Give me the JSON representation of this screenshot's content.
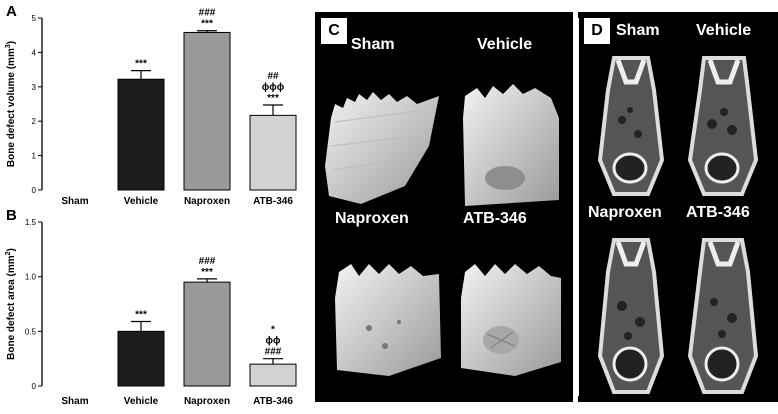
{
  "chart_data": [
    {
      "type": "bar",
      "panel": "A",
      "categories": [
        "Sham",
        "Vehicle",
        "Naproxen",
        "ATB-346"
      ],
      "values": [
        0,
        3.22,
        4.58,
        2.17
      ],
      "errors": [
        0,
        0.25,
        0.05,
        0.3
      ],
      "bar_colors": [
        "#111111",
        "#1c1c1c",
        "#9a9a9a",
        "#d2d2d2"
      ],
      "ylabel_main": "Bone defect volume (mm",
      "ylabel_sup": "3",
      "ylabel_end": ")",
      "ylim": [
        0,
        5
      ],
      "yticks": [
        "0",
        "1",
        "2",
        "3",
        "4",
        "5"
      ],
      "ytick_values": [
        0,
        1,
        2,
        3,
        4,
        5
      ],
      "significance": [
        [],
        [
          "***"
        ],
        [
          "###",
          "***"
        ],
        [
          "##",
          "ϕϕϕ",
          "***"
        ]
      ]
    },
    {
      "type": "bar",
      "panel": "B",
      "categories": [
        "Sham",
        "Vehicle",
        "Naproxen",
        "ATB-346"
      ],
      "values": [
        0,
        0.5,
        0.95,
        0.2
      ],
      "errors": [
        0,
        0.09,
        0.03,
        0.05
      ],
      "bar_colors": [
        "#111111",
        "#1c1c1c",
        "#9a9a9a",
        "#d2d2d2"
      ],
      "ylabel_main": "Bone defect area (mm",
      "ylabel_sup": "2",
      "ylabel_end": ")",
      "ylim": [
        0,
        1.5
      ],
      "yticks": [
        "0",
        "0.5",
        "1.0",
        "1.5"
      ],
      "ytick_values": [
        0,
        0.5,
        1.0,
        1.5
      ],
      "significance": [
        [],
        [
          "***"
        ],
        [
          "###",
          "***"
        ],
        [
          "*",
          "ϕϕ",
          "###"
        ]
      ]
    }
  ],
  "panel_c": {
    "letter": "C",
    "labels": [
      "Sham",
      "Vehicle",
      "Naproxen",
      "ATB-346"
    ]
  },
  "panel_d": {
    "letter": "D",
    "labels": [
      "Sham",
      "Vehicle",
      "Naproxen",
      "ATB-346"
    ]
  }
}
